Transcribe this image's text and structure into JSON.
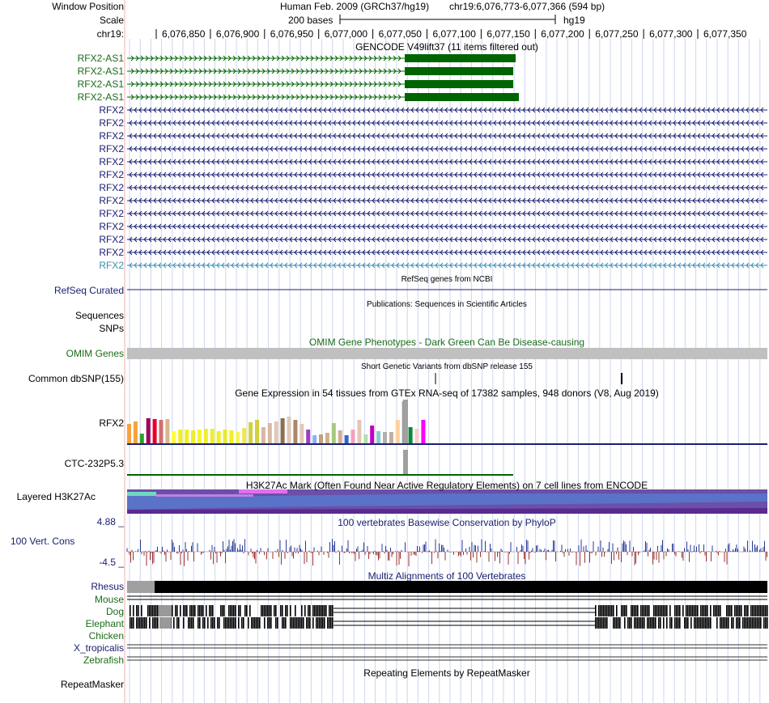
{
  "header": {
    "window_position_label": "Window Position",
    "scale_label": "Scale",
    "chrom_label": "chr19:",
    "assembly_text": "Human Feb. 2009 (GRCh37/hg19)",
    "position_text": "chr19:6,076,773-6,077,366 (594 bp)",
    "scale_text": "200 bases",
    "db_text": "hg19",
    "ticks": [
      "6,076,850",
      "6,076,900",
      "6,076,950",
      "6,077,000",
      "6,077,050",
      "6,077,100",
      "6,077,150",
      "6,077,200",
      "6,077,250",
      "6,077,300",
      "6,077,350"
    ]
  },
  "tracks": {
    "gencode_title": "GENCODE V49lift37 (11 items filtered out)",
    "antisense_label": "RFX2-AS1",
    "antisense_count": 4,
    "rfx2_label": "RFX2",
    "rfx2_count": 13,
    "refseq_title": "RefSeq genes from NCBI",
    "refseq_label": "RefSeq Curated",
    "pubs_title": "Publications: Sequences in Scientific Articles",
    "pubs_label_1": "Sequences",
    "pubs_label_2": "SNPs",
    "omim_title": "OMIM Gene Phenotypes - Dark Green Can Be Disease-causing",
    "omim_label": "OMIM Genes",
    "dbsnp_title": "Short Genetic Variants from dbSNP release 155",
    "dbsnp_label": "Common dbSNP(155)",
    "gtex_title": "Gene Expression in 54 tissues from GTEx RNA-seq of 17382 samples, 948 donors (V8, Aug 2019)",
    "gtex_gene1": "RFX2",
    "gtex_gene2": "CTC-232P5.3",
    "h3k_title": "H3K27Ac Mark (Often Found Near Active Regulatory Elements) on 7 cell lines from ENCODE",
    "h3k_label": "Layered H3K27Ac",
    "cons_title": "100 vertebrates Basewise Conservation by PhyloP",
    "cons_label": "100 Vert. Cons",
    "cons_max": "4.88 _",
    "cons_min": "-4.5 _",
    "multiz_title": "Multiz Alignments of 100 Vertebrates",
    "species": [
      "Rhesus",
      "Mouse",
      "Dog",
      "Elephant",
      "Chicken",
      "X_tropicalis",
      "Zebrafish"
    ],
    "rmsk_title": "Repeating Elements by RepeatMasker",
    "rmsk_label": "RepeatMasker"
  },
  "colors": {
    "navy": "#1a2070",
    "green": "#006400",
    "grid": "#cdd6f0",
    "omim_gray": "#c0c0c0"
  }
}
